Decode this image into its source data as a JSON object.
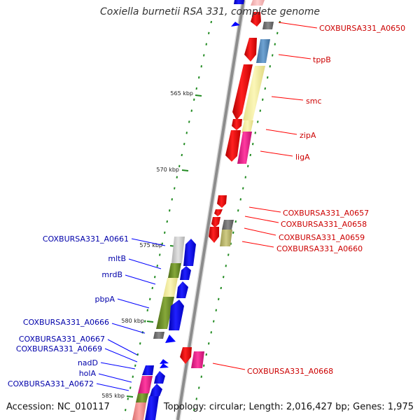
{
  "title": "Coxiella burnetii RSA 331, complete genome",
  "accession": "Accession: NC_010117",
  "topology": "Topology: circular; Length: 2,016,427 bp; Genes: 1,975",
  "colors": {
    "forward_gene": "#ff0000",
    "reverse_gene": "#0000ff",
    "forward_label": "#cc0000",
    "reverse_label": "#0000aa",
    "tick": "#228b22",
    "backbone": "#8c8c8c"
  },
  "scale_ticks": [
    {
      "label": "565 kbp"
    },
    {
      "label": "570 kbp"
    },
    {
      "label": "575 kbp"
    },
    {
      "label": "580 kbp"
    },
    {
      "label": "585 kbp"
    }
  ],
  "forward_labels": [
    {
      "text": "COXBURSA331_A0650"
    },
    {
      "text": "tppB"
    },
    {
      "text": "smc"
    },
    {
      "text": "zipA"
    },
    {
      "text": "ligA"
    },
    {
      "text": "COXBURSA331_A0657"
    },
    {
      "text": "COXBURSA331_A0658"
    },
    {
      "text": "COXBURSA331_A0659"
    },
    {
      "text": "COXBURSA331_A0660"
    },
    {
      "text": "COXBURSA331_A0668"
    }
  ],
  "reverse_labels": [
    {
      "text": "COXBURSA331_A0661"
    },
    {
      "text": "mltB"
    },
    {
      "text": "mrdB"
    },
    {
      "text": "pbpA"
    },
    {
      "text": "COXBURSA331_A0666"
    },
    {
      "text": "COXBURSA331_A0667"
    },
    {
      "text": "COXBURSA331_A0669"
    },
    {
      "text": "nadD"
    },
    {
      "text": "holA"
    },
    {
      "text": "COXBURSA331_A0672"
    }
  ]
}
